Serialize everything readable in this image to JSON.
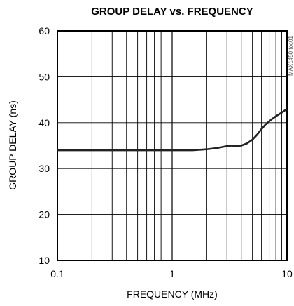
{
  "chart_data": {
    "type": "line",
    "title": "GROUP DELAY vs. FREQUENCY",
    "xlabel": "FREQUENCY (MHz)",
    "ylabel": "GROUP DELAY (ns)",
    "xscale": "log",
    "xlim": [
      0.1,
      10
    ],
    "ylim": [
      10,
      60
    ],
    "x_ticks": [
      0.1,
      1,
      10
    ],
    "x_tick_labels": [
      "0.1",
      "1",
      "10"
    ],
    "y_ticks": [
      10,
      20,
      30,
      40,
      50,
      60
    ],
    "y_tick_labels": [
      "10",
      "20",
      "30",
      "40",
      "50",
      "60"
    ],
    "grid": true,
    "watermark": "MAX1450 toc01",
    "line_color": "#222222",
    "series": [
      {
        "x": [
          0.1,
          0.2,
          0.5,
          1.0,
          1.5,
          2.0,
          2.5,
          3.0,
          3.3,
          3.6,
          4.0,
          4.5,
          5.0,
          5.5,
          6.0,
          6.5,
          7.0,
          7.5,
          8.0,
          9.0,
          10.0
        ],
        "values": [
          34.0,
          34.0,
          34.0,
          34.0,
          34.0,
          34.2,
          34.5,
          34.9,
          35.0,
          34.9,
          35.0,
          35.5,
          36.3,
          37.4,
          38.6,
          39.6,
          40.3,
          40.9,
          41.4,
          42.2,
          43.0
        ]
      }
    ]
  }
}
